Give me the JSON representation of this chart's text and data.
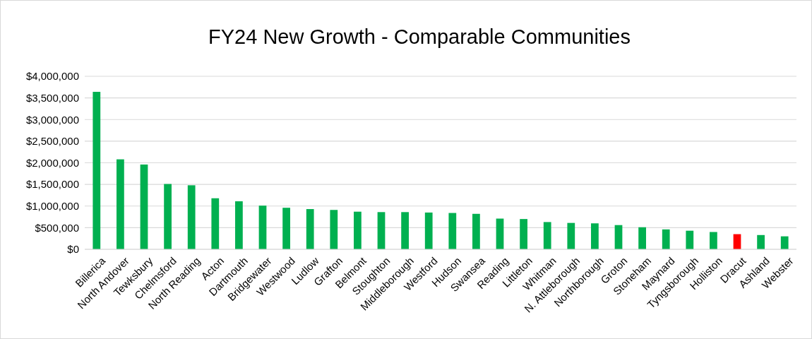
{
  "chart_data": {
    "type": "bar",
    "title": "FY24 New Growth - Comparable Communities",
    "categories": [
      "Billerica",
      "North Andover",
      "Tewksbury",
      "Chelmsford",
      "North Reading",
      "Acton",
      "Dartmouth",
      "Bridgewater",
      "Westwood",
      "Ludlow",
      "Grafton",
      "Belmont",
      "Stoughton",
      "Middleborough",
      "Westford",
      "Hudson",
      "Swansea",
      "Reading",
      "Littleton",
      "Whitman",
      "N. Attleborough",
      "Northborough",
      "Groton",
      "Stoneham",
      "Maynard",
      "Tyngsborough",
      "Holliston",
      "Dracut",
      "Ashland",
      "Webster"
    ],
    "values": [
      3640000,
      2080000,
      1960000,
      1510000,
      1480000,
      1180000,
      1110000,
      1010000,
      960000,
      930000,
      910000,
      870000,
      860000,
      860000,
      850000,
      840000,
      820000,
      710000,
      700000,
      630000,
      610000,
      600000,
      560000,
      510000,
      460000,
      430000,
      400000,
      350000,
      330000,
      300000
    ],
    "colors": [
      "#00b050",
      "#00b050",
      "#00b050",
      "#00b050",
      "#00b050",
      "#00b050",
      "#00b050",
      "#00b050",
      "#00b050",
      "#00b050",
      "#00b050",
      "#00b050",
      "#00b050",
      "#00b050",
      "#00b050",
      "#00b050",
      "#00b050",
      "#00b050",
      "#00b050",
      "#00b050",
      "#00b050",
      "#00b050",
      "#00b050",
      "#00b050",
      "#00b050",
      "#00b050",
      "#00b050",
      "#ff0000",
      "#00b050",
      "#00b050"
    ],
    "ylim": [
      0,
      4000000
    ],
    "yticks": [
      {
        "value": 0,
        "label": "$0"
      },
      {
        "value": 500000,
        "label": "$500,000"
      },
      {
        "value": 1000000,
        "label": "$1,000,000"
      },
      {
        "value": 1500000,
        "label": "$1,500,000"
      },
      {
        "value": 2000000,
        "label": "$2,000,000"
      },
      {
        "value": 2500000,
        "label": "$2,500,000"
      },
      {
        "value": 3000000,
        "label": "$3,000,000"
      },
      {
        "value": 3500000,
        "label": "$3,500,000"
      },
      {
        "value": 4000000,
        "label": "$4,000,000"
      }
    ],
    "grid": "y"
  }
}
